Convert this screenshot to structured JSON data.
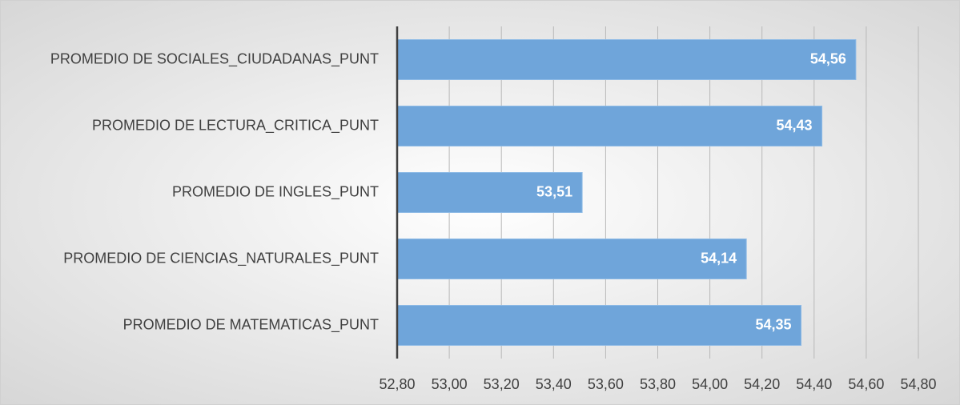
{
  "chart_data": {
    "type": "bar",
    "categories": [
      "PROMEDIO DE SOCIALES_CIUDADANAS_PUNT",
      "PROMEDIO DE LECTURA_CRITICA_PUNT",
      "PROMEDIO DE INGLES_PUNT",
      "PROMEDIO DE CIENCIAS_NATURALES_PUNT",
      "PROMEDIO DE MATEMATICAS_PUNT"
    ],
    "values": [
      54.56,
      54.43,
      53.51,
      54.14,
      54.35
    ],
    "value_labels": [
      "54,56",
      "54,43",
      "53,51",
      "54,14",
      "54,35"
    ],
    "color": "#6fa5da",
    "xlim": [
      52.8,
      54.8
    ],
    "xticks": [
      {
        "value": 52.8,
        "label": "52,80"
      },
      {
        "value": 53.0,
        "label": "53,00"
      },
      {
        "value": 53.2,
        "label": "53,20"
      },
      {
        "value": 53.4,
        "label": "53,40"
      },
      {
        "value": 53.6,
        "label": "53,60"
      },
      {
        "value": 53.8,
        "label": "53,80"
      },
      {
        "value": 54.0,
        "label": "54,00"
      },
      {
        "value": 54.2,
        "label": "54,20"
      },
      {
        "value": 54.4,
        "label": "54,40"
      },
      {
        "value": 54.6,
        "label": "54,60"
      },
      {
        "value": 54.8,
        "label": "54,80"
      }
    ],
    "grid": true
  }
}
